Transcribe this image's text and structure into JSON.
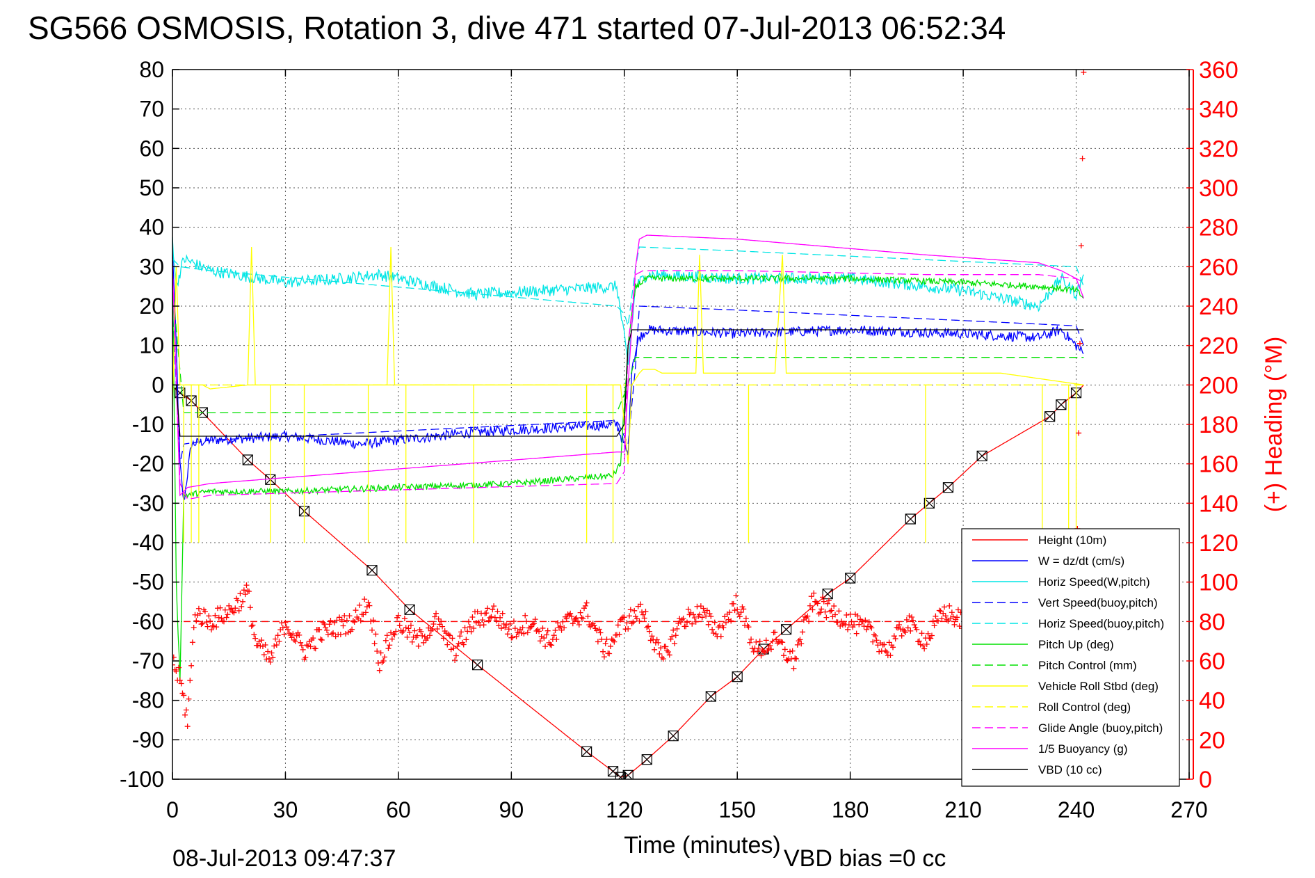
{
  "chart_data": {
    "type": "line",
    "title": "SG566 OSMOSIS, Rotation 3, dive 471 started 07-Jul-2013 06:52:34",
    "xlabel": "Time (minutes)",
    "ylabel_right": "(+) Heading (°M)",
    "xlim": [
      0,
      270
    ],
    "ylim": [
      -100,
      80
    ],
    "ylim_right": [
      0,
      360
    ],
    "x_ticks": [
      "0",
      "30",
      "60",
      "90",
      "120",
      "150",
      "180",
      "210",
      "240",
      "270"
    ],
    "y_ticks": [
      "80",
      "70",
      "60",
      "50",
      "40",
      "30",
      "20",
      "10",
      "0",
      "-10",
      "-20",
      "-30",
      "-40",
      "-50",
      "-60",
      "-70",
      "-80",
      "-90",
      "-100"
    ],
    "y_ticks_right": [
      "360",
      "340",
      "320",
      "300",
      "280",
      "260",
      "240",
      "220",
      "200",
      "180",
      "160",
      "140",
      "120",
      "100",
      "80",
      "60",
      "40",
      "20",
      "0"
    ],
    "grid": true,
    "legend_position": "bottom-right",
    "footer_timestamp": "08-Jul-2013 09:47:37",
    "footer_note": "VBD bias =0 cc",
    "series": [
      {
        "name": "Height (10m)",
        "color": "#ff0000",
        "style": "solid",
        "axis": "left",
        "x": [
          0,
          2,
          5,
          8,
          20,
          26,
          35,
          53,
          63,
          81,
          110,
          117,
          119,
          121,
          126,
          133,
          143,
          150,
          157,
          163,
          174,
          180,
          196,
          201,
          206,
          215,
          233,
          236,
          240,
          242
        ],
        "y": [
          -0.5,
          -2,
          -4,
          -7,
          -19,
          -24,
          -32,
          -47,
          -57,
          -71,
          -93,
          -98,
          -99.5,
          -99,
          -95,
          -89,
          -79,
          -74,
          -67,
          -62,
          -53,
          -49,
          -34,
          -30,
          -26,
          -18,
          -8,
          -5,
          -2,
          0
        ]
      },
      {
        "name": "W = dz/dt (cm/s)",
        "color": "#0000ff",
        "style": "solid",
        "axis": "left",
        "x": [
          0,
          1,
          2,
          3,
          5,
          10,
          30,
          50,
          80,
          118,
          121,
          122,
          124,
          126,
          150,
          180,
          210,
          230,
          236,
          240,
          242
        ],
        "y": [
          35,
          10,
          -20,
          -30,
          -15,
          -14,
          -13,
          -15,
          -12,
          -10,
          -18,
          5,
          12,
          14,
          13,
          14,
          13,
          12,
          14,
          10,
          8
        ],
        "noise": 1.3
      },
      {
        "name": "Horiz Speed(W,pitch)",
        "color": "#00e5e5",
        "style": "solid",
        "axis": "left",
        "x": [
          0,
          1,
          3,
          10,
          30,
          45,
          55,
          80,
          100,
          118,
          120,
          121,
          123,
          126,
          150,
          180,
          210,
          230,
          236,
          240,
          242
        ],
        "y": [
          37,
          25,
          32,
          29,
          26,
          27,
          28,
          23,
          24,
          25,
          12,
          5,
          25,
          28,
          27,
          27,
          24,
          20,
          27,
          23,
          28
        ],
        "noise": 1.5
      },
      {
        "name": "Vert Speed(buoy,pitch)",
        "color": "#0000ff",
        "style": "dashed",
        "axis": "left",
        "x": [
          0,
          2,
          3,
          10,
          118,
          121,
          123,
          124,
          150,
          240,
          242
        ],
        "y": [
          20,
          -20,
          -15,
          -14,
          -9,
          -15,
          5,
          20,
          19,
          15,
          10
        ]
      },
      {
        "name": "Horiz Speed(buoy,pitch)",
        "color": "#00e5e5",
        "style": "dashed",
        "axis": "left",
        "x": [
          0,
          2,
          10,
          118,
          120,
          121,
          123,
          124,
          150,
          240,
          242
        ],
        "y": [
          32,
          30,
          29,
          20,
          18,
          15,
          30,
          35,
          34,
          30,
          25
        ]
      },
      {
        "name": "Pitch Up (deg)",
        "color": "#00e000",
        "style": "solid",
        "axis": "left",
        "x": [
          0,
          1,
          2,
          3,
          10,
          30,
          60,
          90,
          117,
          119,
          121,
          123,
          126,
          150,
          180,
          210,
          230,
          240,
          242
        ],
        "y": [
          30,
          -50,
          -75,
          -28,
          -27,
          -27,
          -26,
          -25,
          -23,
          -20,
          10,
          25,
          27,
          27,
          27,
          26,
          25,
          24,
          22
        ],
        "noise": 0.8
      },
      {
        "name": "Pitch Control (mm)",
        "color": "#00e000",
        "style": "dashed",
        "axis": "left",
        "x": [
          0,
          3,
          4,
          118,
          121,
          123,
          125,
          242
        ],
        "y": [
          25,
          -7,
          -7,
          -7,
          0,
          7,
          7,
          7
        ]
      },
      {
        "name": "Vehicle Roll Stbd (deg)",
        "color": "#ffff00",
        "style": "solid",
        "axis": "left",
        "x": [
          0,
          1,
          2,
          5,
          8,
          10,
          20,
          21,
          22,
          57,
          58,
          59,
          119,
          121,
          122,
          124,
          125,
          128,
          130,
          139,
          140,
          141,
          150,
          160,
          162,
          163,
          220,
          242
        ],
        "y": [
          -5,
          30,
          0,
          0,
          0,
          -1,
          0,
          35,
          0,
          0,
          35,
          0,
          0,
          -20,
          0,
          3,
          4,
          4,
          3,
          3,
          33,
          3,
          3,
          3,
          33,
          3,
          3,
          0
        ],
        "spikes": [
          [
            3,
            -40
          ],
          [
            5,
            -40
          ],
          [
            7,
            -40
          ],
          [
            26,
            -40
          ],
          [
            35,
            -40
          ],
          [
            52,
            -40
          ],
          [
            62,
            -40
          ],
          [
            80,
            -40
          ],
          [
            110,
            -40
          ],
          [
            117,
            -40
          ],
          [
            153,
            -40
          ],
          [
            200,
            -40
          ],
          [
            231,
            -40
          ],
          [
            238,
            -40
          ],
          [
            240,
            -40
          ]
        ]
      },
      {
        "name": "Roll Control (deg)",
        "color": "#ffff00",
        "style": "dashed",
        "axis": "left",
        "x": [
          0,
          2,
          118,
          121,
          123,
          242
        ],
        "y": [
          0,
          0,
          0,
          0,
          0,
          0
        ]
      },
      {
        "name": "Glide Angle (buoy,pitch)",
        "color": "#ff00ff",
        "style": "dashed",
        "axis": "left",
        "x": [
          0,
          2,
          4,
          10,
          118,
          120,
          121,
          123,
          125,
          150,
          200,
          230,
          240,
          242
        ],
        "y": [
          30,
          -25,
          -29,
          -28,
          -25,
          -22,
          10,
          28,
          29,
          29,
          28,
          28,
          27,
          26
        ]
      },
      {
        "name": "1/5 Buoyancy (g)",
        "color": "#ff00ff",
        "style": "solid",
        "axis": "left",
        "x": [
          0,
          2,
          4,
          10,
          118,
          120,
          121,
          123,
          124,
          126,
          150,
          200,
          230,
          236,
          240,
          242
        ],
        "y": [
          30,
          -28,
          -26,
          -25,
          -17,
          -17,
          0,
          30,
          37,
          38,
          37,
          33,
          31,
          29,
          27,
          22
        ]
      },
      {
        "name": "VBD (10 cc)",
        "color": "#000000",
        "style": "solid",
        "axis": "left",
        "x": [
          0,
          1,
          2,
          3,
          118,
          120,
          121,
          122,
          242
        ],
        "y": [
          0,
          0,
          -13,
          -13,
          -13,
          -10,
          10,
          14,
          14
        ]
      },
      {
        "name": "Heading",
        "color": "#ff0000",
        "style": "plus-markers",
        "axis": "right",
        "x": [
          0,
          2,
          4,
          6,
          10,
          15,
          20,
          22,
          26,
          30,
          35,
          40,
          48,
          52,
          55,
          60,
          65,
          70,
          75,
          80,
          85,
          90,
          95,
          100,
          105,
          110,
          115,
          120,
          125,
          130,
          135,
          140,
          145,
          150,
          155,
          160,
          165,
          170,
          175,
          180,
          185,
          190,
          195,
          200,
          205,
          210,
          215,
          220,
          225,
          230,
          235,
          240,
          242
        ],
        "y": [
          60,
          50,
          30,
          85,
          80,
          85,
          95,
          70,
          60,
          80,
          65,
          75,
          80,
          90,
          60,
          80,
          70,
          80,
          65,
          80,
          85,
          75,
          80,
          70,
          80,
          85,
          65,
          80,
          85,
          60,
          80,
          85,
          75,
          90,
          65,
          70,
          60,
          90,
          85,
          80,
          75,
          65,
          80,
          70,
          85,
          80,
          70,
          75,
          85,
          80,
          75,
          80,
          360
        ],
        "mean_heading": 80
      }
    ]
  }
}
